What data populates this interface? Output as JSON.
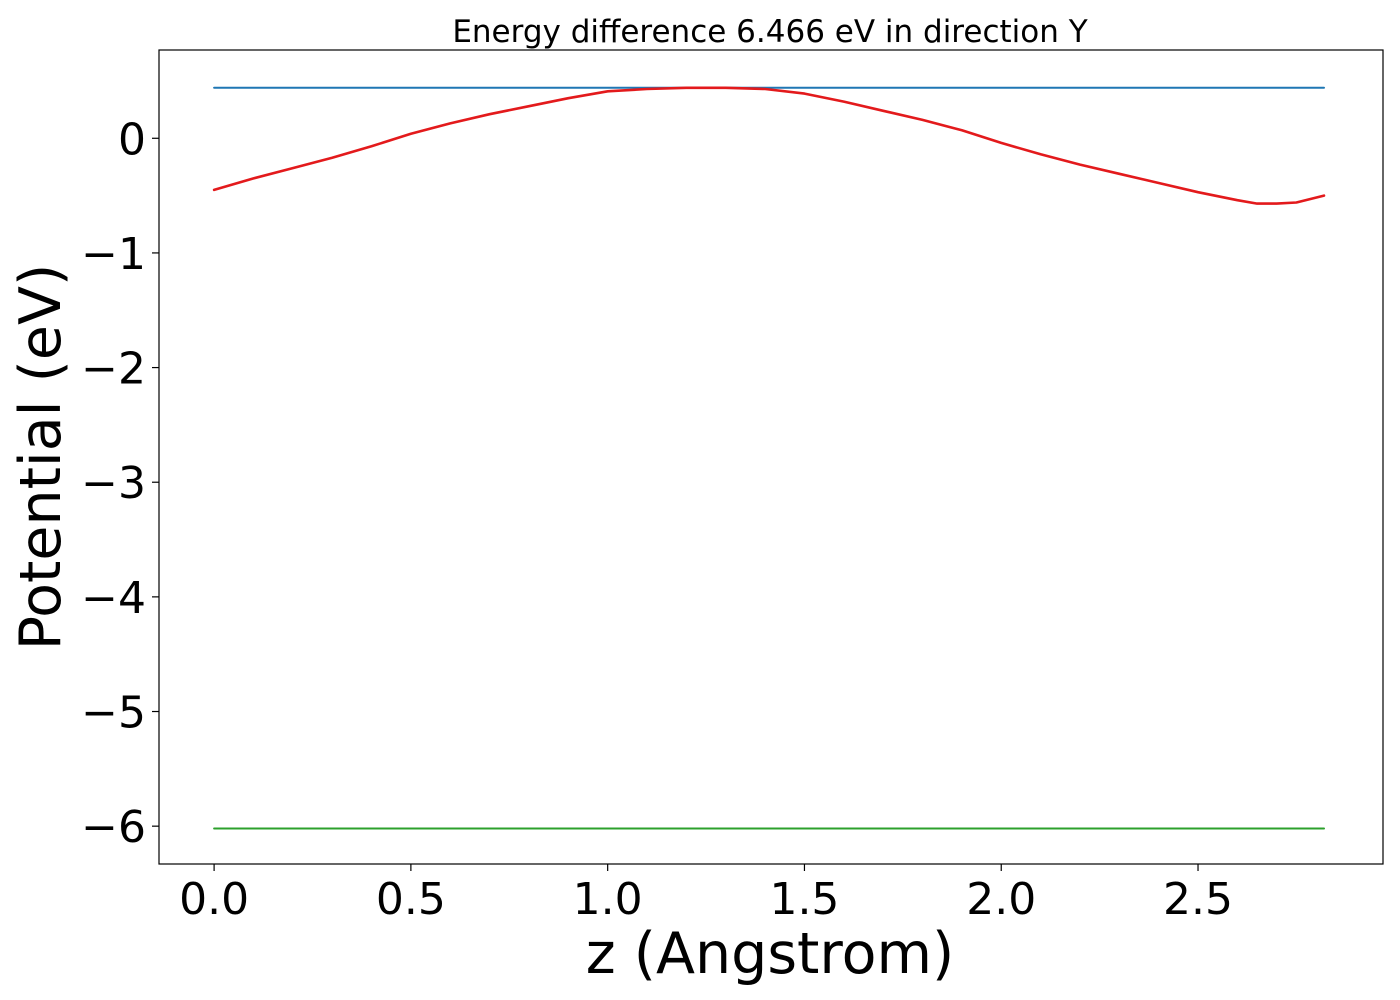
{
  "chart_data": {
    "type": "line",
    "title": "Energy difference 6.466 eV in direction Y",
    "xlabel": "z (Angstrom)",
    "ylabel": "Potential (eV)",
    "xlim": [
      -0.14,
      2.97
    ],
    "ylim": [
      -6.33,
      0.77
    ],
    "xticks": [
      0.0,
      0.5,
      1.0,
      1.5,
      2.0,
      2.5
    ],
    "xtick_labels": [
      "0.0",
      "0.5",
      "1.0",
      "1.5",
      "2.0",
      "2.5"
    ],
    "yticks": [
      0,
      -1,
      -2,
      -3,
      -4,
      -5,
      -6
    ],
    "ytick_labels": [
      "0",
      "−1",
      "−2",
      "−3",
      "−4",
      "−5",
      "−6"
    ],
    "grid": false,
    "series": [
      {
        "color": "#1f77b4",
        "x": [
          0.0,
          2.82
        ],
        "y": [
          0.44,
          0.44
        ]
      },
      {
        "color": "#2ca02c",
        "x": [
          0.0,
          2.82
        ],
        "y": [
          -6.02,
          -6.02
        ]
      },
      {
        "color": "#e31a1c",
        "x": [
          0.0,
          0.1,
          0.2,
          0.3,
          0.4,
          0.5,
          0.6,
          0.7,
          0.8,
          0.9,
          1.0,
          1.1,
          1.2,
          1.3,
          1.4,
          1.5,
          1.6,
          1.7,
          1.8,
          1.9,
          2.0,
          2.1,
          2.2,
          2.3,
          2.4,
          2.5,
          2.6,
          2.65,
          2.7,
          2.75,
          2.82
        ],
        "y": [
          -0.45,
          -0.35,
          -0.26,
          -0.17,
          -0.07,
          0.04,
          0.13,
          0.21,
          0.28,
          0.35,
          0.41,
          0.43,
          0.44,
          0.44,
          0.43,
          0.39,
          0.32,
          0.24,
          0.16,
          0.07,
          -0.04,
          -0.14,
          -0.23,
          -0.31,
          -0.39,
          -0.47,
          -0.54,
          -0.57,
          -0.57,
          -0.56,
          -0.5
        ]
      }
    ]
  }
}
